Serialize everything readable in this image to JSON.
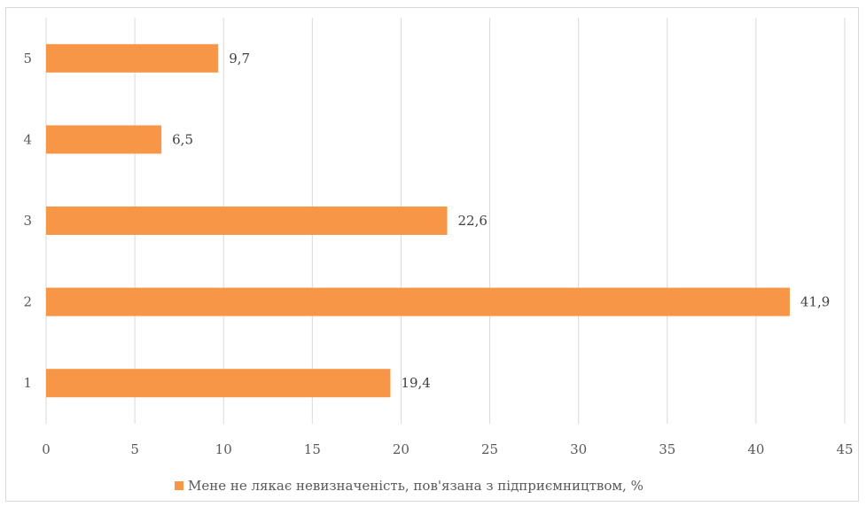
{
  "chart_data": {
    "type": "bar",
    "orientation": "horizontal",
    "categories": [
      "1",
      "2",
      "3",
      "4",
      "5"
    ],
    "series": [
      {
        "name": "Мене не лякає невизначеність, пов'язана з підприємництвом, %",
        "values": [
          19.4,
          41.9,
          22.6,
          6.5,
          9.7
        ],
        "color": "#f79646"
      }
    ],
    "data_labels": [
      "19,4",
      "41,9",
      "22,6",
      "6,5",
      "9,7"
    ],
    "x_ticks": [
      "0",
      "5",
      "10",
      "15",
      "20",
      "25",
      "30",
      "35",
      "40",
      "45"
    ],
    "xlim": [
      0,
      45
    ],
    "grid": true,
    "legend_position": "bottom"
  },
  "colors": {
    "bar": "#f79646",
    "grid": "#d9d9d9",
    "text": "#595959"
  }
}
